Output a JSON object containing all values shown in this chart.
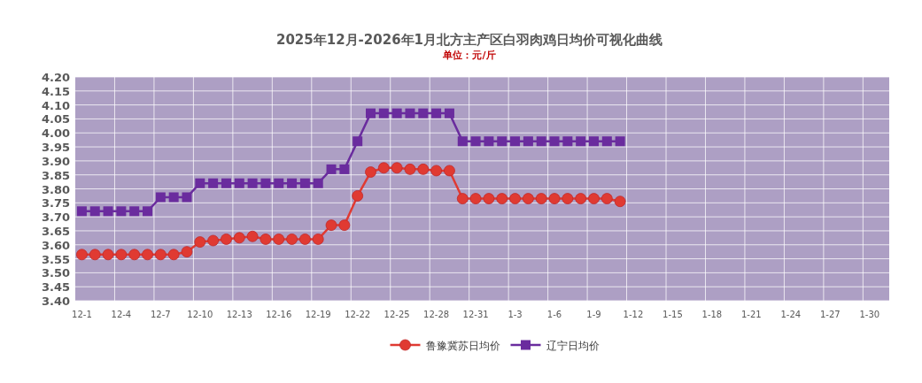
{
  "chart_data": {
    "type": "line",
    "title": "2025年12月-2026年1月北方主产区白羽肉鸡日均价可视化曲线",
    "subtitle": "单位：元/斤",
    "categories": [
      "12-1",
      null,
      null,
      "12-4",
      null,
      null,
      "12-7",
      null,
      null,
      "12-10",
      null,
      null,
      "12-13",
      null,
      null,
      "12-16",
      null,
      null,
      "12-19",
      null,
      null,
      "12-22",
      null,
      null,
      "12-25",
      null,
      null,
      "12-28",
      null,
      null,
      "12-31",
      null,
      null,
      "1-3",
      null,
      null,
      "1-6",
      null,
      null,
      "1-9",
      null,
      null,
      "1-12",
      null,
      null,
      "1-15",
      null,
      null,
      "1-18",
      null,
      null,
      "1-21",
      null,
      null,
      "1-24",
      null,
      null,
      "1-27",
      null,
      null,
      "1-30",
      null
    ],
    "series": [
      {
        "name": "鲁豫冀苏日均价",
        "color": "#e03a32",
        "marker": "circle",
        "values": [
          3.565,
          3.565,
          3.565,
          3.565,
          3.565,
          3.565,
          3.565,
          3.565,
          3.575,
          3.61,
          3.615,
          3.62,
          3.625,
          3.63,
          3.62,
          3.62,
          3.62,
          3.62,
          3.62,
          3.67,
          3.67,
          3.775,
          3.86,
          3.875,
          3.875,
          3.87,
          3.87,
          3.865,
          3.865,
          3.765,
          3.765,
          3.765,
          3.765,
          3.765,
          3.765,
          3.765,
          3.765,
          3.765,
          3.765,
          3.765,
          3.765,
          3.755,
          null,
          null,
          null,
          null,
          null,
          null,
          null,
          null,
          null,
          null,
          null,
          null,
          null,
          null,
          null,
          null,
          null,
          null,
          null,
          null
        ]
      },
      {
        "name": "辽宁日均价",
        "color": "#6a2c9e",
        "marker": "square",
        "values": [
          3.72,
          3.72,
          3.72,
          3.72,
          3.72,
          3.72,
          3.77,
          3.77,
          3.77,
          3.82,
          3.82,
          3.82,
          3.82,
          3.82,
          3.82,
          3.82,
          3.82,
          3.82,
          3.82,
          3.87,
          3.87,
          3.97,
          4.07,
          4.07,
          4.07,
          4.07,
          4.07,
          4.07,
          4.07,
          3.97,
          3.97,
          3.97,
          3.97,
          3.97,
          3.97,
          3.97,
          3.97,
          3.97,
          3.97,
          3.97,
          3.97,
          3.97,
          null,
          null,
          null,
          null,
          null,
          null,
          null,
          null,
          null,
          null,
          null,
          null,
          null,
          null,
          null,
          null,
          null,
          null,
          null,
          null
        ]
      }
    ],
    "ylim": [
      3.4,
      4.2
    ],
    "yticks": [
      {
        "value": 3.4,
        "label": "3.40"
      },
      {
        "value": 3.45,
        "label": "3.45"
      },
      {
        "value": 3.5,
        "label": "3.50"
      },
      {
        "value": 3.55,
        "label": "3.55"
      },
      {
        "value": 3.6,
        "label": "3.60"
      },
      {
        "value": 3.65,
        "label": "3.65"
      },
      {
        "value": 3.7,
        "label": "3.70"
      },
      {
        "value": 3.75,
        "label": "3.75"
      },
      {
        "value": 3.8,
        "label": "3.80"
      },
      {
        "value": 3.85,
        "label": "3.85"
      },
      {
        "value": 3.9,
        "label": "3.90"
      },
      {
        "value": 3.95,
        "label": "3.95"
      },
      {
        "value": 4.0,
        "label": "4.00"
      },
      {
        "value": 4.05,
        "label": "4.05"
      },
      {
        "value": 4.1,
        "label": "4.10"
      },
      {
        "value": 4.15,
        "label": "4.15"
      },
      {
        "value": 4.2,
        "label": "4.20"
      }
    ],
    "grid": true,
    "legend": "bottom"
  }
}
